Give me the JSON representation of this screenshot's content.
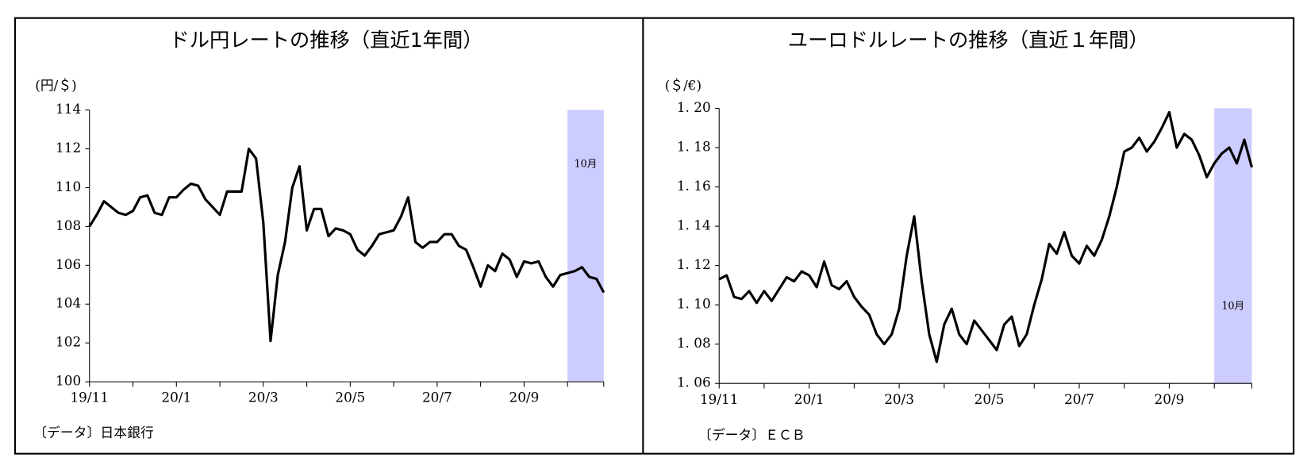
{
  "chart_data": [
    {
      "type": "line",
      "title": "ドル円レートの推移（直近1年間）",
      "y_label": "(円/＄)",
      "source": "〔データ〕日本銀行",
      "annotation": "10月",
      "band_color": "#ccccff",
      "categories": [
        "19/11",
        null,
        null,
        null,
        null,
        null,
        null,
        null,
        null,
        null,
        null,
        null,
        "20/1",
        null,
        null,
        null,
        null,
        null,
        null,
        null,
        null,
        null,
        null,
        null,
        "20/3",
        null,
        null,
        null,
        null,
        null,
        null,
        null,
        null,
        null,
        null,
        null,
        "20/5",
        null,
        null,
        null,
        null,
        null,
        null,
        null,
        null,
        null,
        null,
        null,
        "20/7",
        null,
        null,
        null,
        null,
        null,
        null,
        null,
        null,
        null,
        null,
        null,
        "20/9",
        null,
        null,
        null,
        null,
        null,
        null,
        null,
        null,
        null,
        null,
        null
      ],
      "series": [
        {
          "name": "ドル円",
          "color": "#000000",
          "values": [
            108.0,
            108.6,
            109.3,
            109.0,
            108.7,
            108.6,
            108.8,
            109.5,
            109.6,
            108.7,
            108.6,
            109.5,
            109.5,
            109.9,
            110.2,
            110.1,
            109.4,
            109.0,
            108.6,
            109.8,
            109.8,
            109.8,
            112.0,
            111.5,
            108.2,
            102.1,
            105.5,
            107.2,
            110.0,
            111.1,
            107.8,
            108.9,
            108.9,
            107.5,
            107.9,
            107.8,
            107.6,
            106.8,
            106.5,
            107.0,
            107.6,
            107.7,
            107.8,
            108.5,
            109.5,
            107.2,
            106.9,
            107.2,
            107.2,
            107.6,
            107.6,
            107.0,
            106.8,
            105.9,
            104.9,
            106.0,
            105.7,
            106.6,
            106.3,
            105.4,
            106.2,
            106.1,
            106.2,
            105.4,
            104.9,
            105.5,
            105.6,
            105.7,
            105.9,
            105.4,
            105.3,
            104.6
          ]
        }
      ],
      "ylim": [
        100,
        114
      ],
      "yticks": [
        100,
        102,
        104,
        106,
        108,
        110,
        112,
        114
      ]
    },
    {
      "type": "line",
      "title": "ユーロドルレートの推移（直近１年間）",
      "y_label": "(＄/€)",
      "source": "〔データ〕ＥＣＢ",
      "annotation": "10月",
      "band_color": "#ccccff",
      "categories": [
        "19/11",
        null,
        null,
        null,
        null,
        null,
        null,
        null,
        null,
        null,
        null,
        null,
        "20/1",
        null,
        null,
        null,
        null,
        null,
        null,
        null,
        null,
        null,
        null,
        null,
        "20/3",
        null,
        null,
        null,
        null,
        null,
        null,
        null,
        null,
        null,
        null,
        null,
        "20/5",
        null,
        null,
        null,
        null,
        null,
        null,
        null,
        null,
        null,
        null,
        null,
        "20/7",
        null,
        null,
        null,
        null,
        null,
        null,
        null,
        null,
        null,
        null,
        null,
        "20/9",
        null,
        null,
        null,
        null,
        null,
        null,
        null,
        null,
        null,
        null,
        null
      ],
      "series": [
        {
          "name": "ユーロドル",
          "color": "#000000",
          "values": [
            1.113,
            1.115,
            1.104,
            1.103,
            1.107,
            1.101,
            1.107,
            1.102,
            1.108,
            1.114,
            1.112,
            1.117,
            1.115,
            1.109,
            1.122,
            1.11,
            1.108,
            1.112,
            1.104,
            1.099,
            1.095,
            1.085,
            1.08,
            1.085,
            1.098,
            1.125,
            1.145,
            1.112,
            1.085,
            1.071,
            1.09,
            1.098,
            1.085,
            1.08,
            1.092,
            1.087,
            1.082,
            1.077,
            1.09,
            1.094,
            1.079,
            1.085,
            1.1,
            1.113,
            1.131,
            1.126,
            1.137,
            1.125,
            1.121,
            1.13,
            1.125,
            1.133,
            1.145,
            1.16,
            1.178,
            1.18,
            1.185,
            1.178,
            1.183,
            1.19,
            1.198,
            1.18,
            1.187,
            1.184,
            1.176,
            1.165,
            1.172,
            1.177,
            1.18,
            1.172,
            1.184,
            1.17
          ]
        }
      ],
      "ylim": [
        1.06,
        1.2
      ],
      "yticks": [
        {
          "value": 1.06,
          "label": "1. 06"
        },
        {
          "value": 1.08,
          "label": "1. 08"
        },
        {
          "value": 1.1,
          "label": "1. 10"
        },
        {
          "value": 1.12,
          "label": "1. 12"
        },
        {
          "value": 1.14,
          "label": "1. 14"
        },
        {
          "value": 1.16,
          "label": "1. 16"
        },
        {
          "value": 1.18,
          "label": "1. 18"
        },
        {
          "value": 1.2,
          "label": "1. 20"
        }
      ]
    }
  ]
}
